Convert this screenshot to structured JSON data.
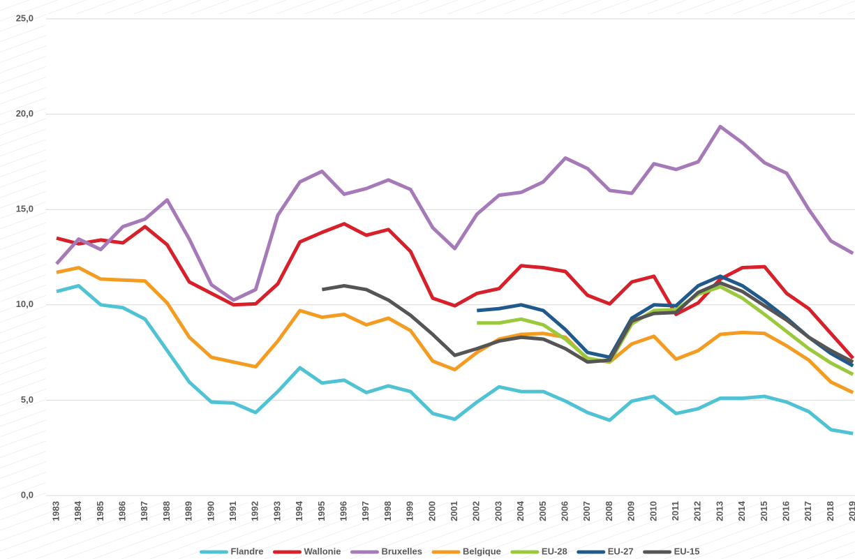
{
  "chart_data": {
    "type": "line",
    "categories": [
      "1983",
      "1984",
      "1985",
      "1986",
      "1987",
      "1988",
      "1989",
      "1990",
      "1991",
      "1992",
      "1993",
      "1994",
      "1995",
      "1996",
      "1997",
      "1998",
      "1999",
      "2000",
      "2001",
      "2002",
      "2003",
      "2004",
      "2005",
      "2006",
      "2007",
      "2008",
      "2009",
      "2010",
      "2011",
      "2012",
      "2013",
      "2014",
      "2015",
      "2016",
      "2017",
      "2018",
      "2019"
    ],
    "ylim": [
      0,
      25
    ],
    "yticks": [
      {
        "value": 0,
        "label": "0,0"
      },
      {
        "value": 5,
        "label": "5,0"
      },
      {
        "value": 10,
        "label": "10,0"
      },
      {
        "value": 15,
        "label": "15,0"
      },
      {
        "value": 20,
        "label": "20,0"
      },
      {
        "value": 25,
        "label": "25,0"
      }
    ],
    "grid": true,
    "legend": "bottom",
    "series": [
      {
        "name": "Flandre",
        "color": "#4fc3d4",
        "values": [
          10.7,
          11.0,
          10.0,
          9.85,
          9.25,
          7.6,
          5.95,
          4.9,
          4.85,
          4.35,
          5.45,
          6.7,
          5.9,
          6.05,
          5.4,
          5.75,
          5.45,
          4.3,
          4.0,
          4.9,
          5.7,
          5.45,
          5.45,
          4.95,
          4.35,
          3.95,
          4.95,
          5.2,
          4.3,
          4.55,
          5.1,
          5.1,
          5.2,
          4.9,
          4.4,
          3.45,
          3.25
        ]
      },
      {
        "name": "Wallonie",
        "color": "#d7202a",
        "values": [
          13.5,
          13.2,
          13.4,
          13.25,
          14.1,
          13.15,
          11.2,
          10.6,
          10.0,
          10.05,
          11.1,
          13.3,
          13.8,
          14.25,
          13.65,
          13.95,
          12.8,
          10.35,
          9.95,
          10.6,
          10.85,
          12.05,
          11.95,
          11.75,
          10.5,
          10.05,
          11.2,
          11.5,
          9.5,
          10.1,
          11.35,
          11.95,
          12.0,
          10.6,
          9.8,
          8.5,
          7.2
        ]
      },
      {
        "name": "Bruxelles",
        "color": "#a679b8",
        "values": [
          12.15,
          13.45,
          12.9,
          14.1,
          14.5,
          15.5,
          13.45,
          11.05,
          10.25,
          10.8,
          14.7,
          16.45,
          17.0,
          15.8,
          16.1,
          16.55,
          16.05,
          14.05,
          12.95,
          14.75,
          15.75,
          15.9,
          16.45,
          17.7,
          17.15,
          16.0,
          15.85,
          17.4,
          17.1,
          17.5,
          19.35,
          18.5,
          17.45,
          16.9,
          15.0,
          13.35,
          12.7
        ]
      },
      {
        "name": "Belgique",
        "color": "#f39c21",
        "values": [
          11.7,
          11.95,
          11.35,
          11.3,
          11.25,
          10.1,
          8.3,
          7.25,
          7.0,
          6.75,
          8.1,
          9.7,
          9.35,
          9.5,
          8.95,
          9.3,
          8.65,
          7.05,
          6.6,
          7.5,
          8.2,
          8.45,
          8.5,
          8.3,
          7.15,
          7.0,
          7.95,
          8.35,
          7.15,
          7.6,
          8.45,
          8.55,
          8.5,
          7.85,
          7.1,
          5.95,
          5.4
        ]
      },
      {
        "name": "EU-28",
        "color": "#9bc93c",
        "values": [
          null,
          null,
          null,
          null,
          null,
          null,
          null,
          null,
          null,
          null,
          null,
          null,
          null,
          null,
          null,
          null,
          null,
          null,
          null,
          9.05,
          9.05,
          9.25,
          8.95,
          8.2,
          7.2,
          7.0,
          9.0,
          9.7,
          9.75,
          10.55,
          10.95,
          10.35,
          9.5,
          8.6,
          7.7,
          6.95,
          6.35
        ]
      },
      {
        "name": "EU-27",
        "color": "#205a8c",
        "values": [
          null,
          null,
          null,
          null,
          null,
          null,
          null,
          null,
          null,
          null,
          null,
          null,
          null,
          null,
          null,
          null,
          null,
          null,
          null,
          9.7,
          9.8,
          10.0,
          9.7,
          8.7,
          7.5,
          7.25,
          9.3,
          10.0,
          9.95,
          11.0,
          11.5,
          11.0,
          10.2,
          9.3,
          8.3,
          7.45,
          6.8
        ]
      },
      {
        "name": "EU-15",
        "color": "#555555",
        "values": [
          null,
          null,
          null,
          null,
          null,
          null,
          null,
          null,
          null,
          null,
          null,
          null,
          10.8,
          11.0,
          10.8,
          10.25,
          9.45,
          8.45,
          7.35,
          7.7,
          8.1,
          8.3,
          8.2,
          7.7,
          7.0,
          7.1,
          9.15,
          9.55,
          9.6,
          10.65,
          11.15,
          10.7,
          9.95,
          9.2,
          8.3,
          7.6,
          7.0
        ]
      }
    ]
  }
}
